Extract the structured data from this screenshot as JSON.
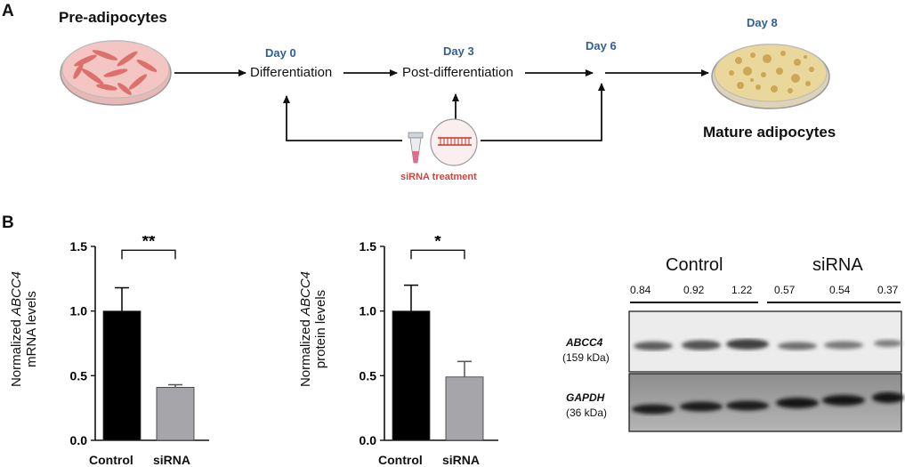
{
  "panelA": {
    "letter": "A",
    "pre_label": "Pre-adipocytes",
    "mature_label": "Mature adipocytes",
    "day0": "Day 0",
    "day3": "Day 3",
    "day6": "Day 6",
    "day8": "Day 8",
    "step_differentiation": "Differentiation",
    "step_post": "Post-differentiation",
    "treatment_label": "siRNA treatment",
    "colors": {
      "day": "#2f5f9a",
      "treatment": "#d0463f"
    }
  },
  "panelB": {
    "letter": "B"
  },
  "chart_data": [
    {
      "type": "bar",
      "categories": [
        "Control",
        "siRNA"
      ],
      "values": [
        1.0,
        0.41
      ],
      "errors": [
        0.18,
        0.02
      ],
      "colors": [
        "#000000",
        "#a6a6aa"
      ],
      "ylabel_prefix": "Normalized ",
      "ylabel_gene": "ABCC4",
      "ylabel_line2": "mRNA levels",
      "ylim": [
        0,
        1.5
      ],
      "yticks": [
        "0.0",
        "0.5",
        "1.0",
        "1.5"
      ],
      "significance": "**"
    },
    {
      "type": "bar",
      "categories": [
        "Control",
        "siRNA"
      ],
      "values": [
        1.0,
        0.49
      ],
      "errors": [
        0.2,
        0.12
      ],
      "colors": [
        "#000000",
        "#a6a6aa"
      ],
      "ylabel_prefix": "Normalized ",
      "ylabel_gene": "ABCC4",
      "ylabel_line2": "protein levels",
      "ylim": [
        0,
        1.5
      ],
      "yticks": [
        "0.0",
        "0.5",
        "1.0",
        "1.5"
      ],
      "significance": "*"
    }
  ],
  "blot": {
    "group_control": "Control",
    "group_sirna": "siRNA",
    "densities": [
      "0.84",
      "0.92",
      "1.22",
      "0.57",
      "0.54",
      "0.37"
    ],
    "proteins": [
      {
        "name": "ABCC4",
        "size": "(159 kDa)"
      },
      {
        "name": "GAPDH",
        "size": "(36 kDa)"
      }
    ]
  }
}
